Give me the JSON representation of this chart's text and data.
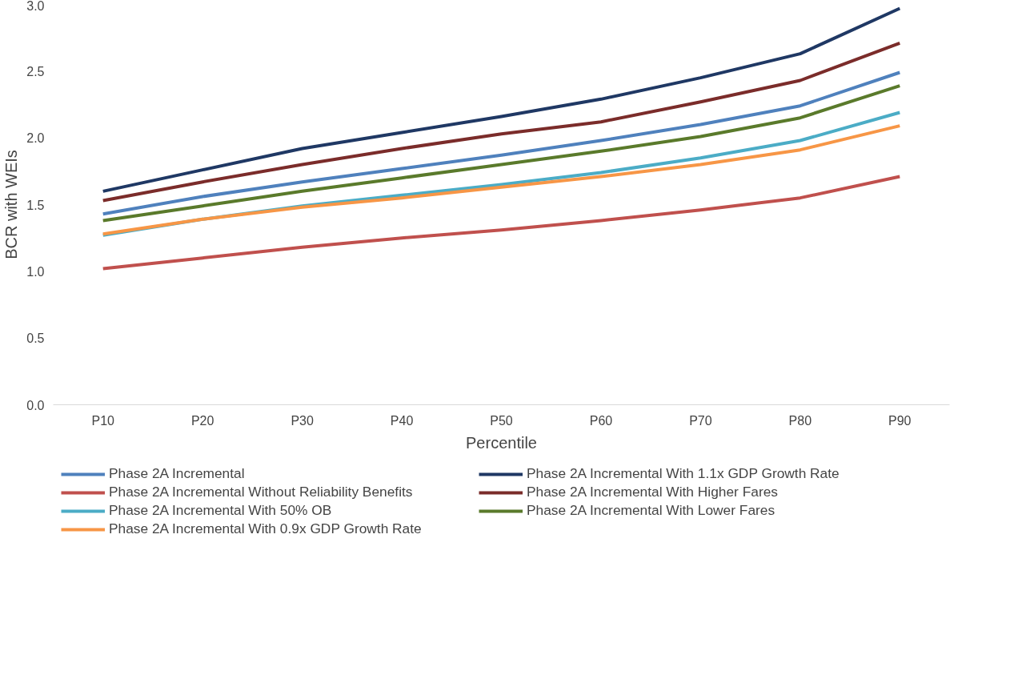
{
  "chart_data": {
    "type": "line",
    "xlabel": "Percentile",
    "ylabel": "BCR with WEIs",
    "categories": [
      "P10",
      "P20",
      "P30",
      "P40",
      "P50",
      "P60",
      "P70",
      "P80",
      "P90"
    ],
    "ylim": [
      0,
      3
    ],
    "yticks": [
      {
        "value": 0,
        "label": "0.0"
      },
      {
        "value": 0.5,
        "label": "0.5"
      },
      {
        "value": 1,
        "label": "1.0"
      },
      {
        "value": 1.5,
        "label": "1.5"
      },
      {
        "value": 2,
        "label": "2.0"
      },
      {
        "value": 2.5,
        "label": "2.5"
      },
      {
        "value": 3,
        "label": "3.0"
      }
    ],
    "grid": false,
    "legend": "bottom",
    "marker": "none",
    "line_style": "solid",
    "series": [
      {
        "name": "Phase 2A Incremental",
        "color": "#4f81bd",
        "values": [
          1.43,
          1.56,
          1.67,
          1.77,
          1.87,
          1.98,
          2.1,
          2.24,
          2.49
        ]
      },
      {
        "name": "Phase 2A Incremental Without Reliability Benefits",
        "color": "#c0504d",
        "values": [
          1.02,
          1.1,
          1.18,
          1.25,
          1.31,
          1.38,
          1.46,
          1.55,
          1.71
        ]
      },
      {
        "name": "Phase 2A Incremental With 50% OB",
        "color": "#4bacc6",
        "values": [
          1.27,
          1.39,
          1.49,
          1.57,
          1.65,
          1.74,
          1.85,
          1.98,
          2.19
        ]
      },
      {
        "name": "Phase 2A Incremental With 0.9x GDP Growth Rate",
        "color": "#f79646",
        "values": [
          1.28,
          1.39,
          1.48,
          1.55,
          1.63,
          1.71,
          1.8,
          1.91,
          2.09
        ]
      },
      {
        "name": "Phase 2A Incremental With 1.1x GDP Growth Rate",
        "color": "#1f3864",
        "values": [
          1.6,
          1.76,
          1.92,
          2.04,
          2.16,
          2.29,
          2.45,
          2.63,
          2.97
        ]
      },
      {
        "name": "Phase 2A Incremental With Higher Fares",
        "color": "#7b2c2a",
        "values": [
          1.53,
          1.67,
          1.8,
          1.92,
          2.03,
          2.12,
          2.27,
          2.43,
          2.71
        ]
      },
      {
        "name": "Phase 2A Incremental With Lower Fares",
        "color": "#5a7a2b",
        "values": [
          1.38,
          1.49,
          1.6,
          1.7,
          1.8,
          1.9,
          2.01,
          2.15,
          2.39
        ]
      }
    ]
  }
}
